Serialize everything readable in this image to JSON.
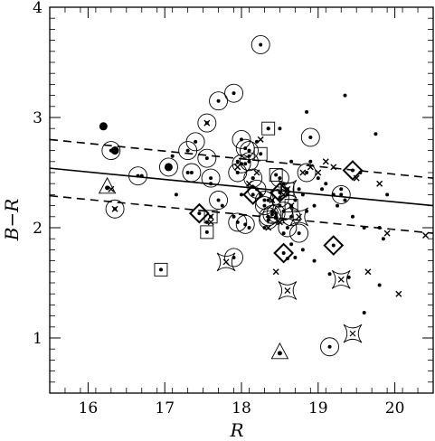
{
  "chart_data": {
    "type": "scatter",
    "xlabel": "R",
    "ylabel": "B−R",
    "xlim": [
      15.5,
      20.5
    ],
    "ylim": [
      0.5,
      4.0
    ],
    "x_ticks": [
      16,
      17,
      18,
      19,
      20
    ],
    "y_ticks": [
      1,
      2,
      3,
      4
    ],
    "x_tick_labels": [
      "16",
      "17",
      "18",
      "19",
      "20"
    ],
    "y_tick_labels": [
      "1",
      "2",
      "3",
      "4"
    ],
    "grid": false,
    "lines": [
      {
        "style": "solid",
        "x": [
          15.5,
          20.5
        ],
        "y": [
          2.54,
          2.2
        ]
      },
      {
        "style": "dashed",
        "x": [
          15.5,
          20.5
        ],
        "y": [
          2.8,
          2.45
        ]
      },
      {
        "style": "dashed",
        "x": [
          15.5,
          20.5
        ],
        "y": [
          2.29,
          1.95
        ]
      }
    ],
    "series": [
      {
        "marker": "small-dot",
        "points": [
          [
            17.95,
            2.6
          ],
          [
            18.1,
            2.65
          ],
          [
            18.05,
            2.58
          ],
          [
            18.0,
            2.3
          ],
          [
            18.15,
            2.45
          ],
          [
            18.25,
            2.3
          ],
          [
            18.35,
            2.25
          ],
          [
            18.4,
            2.15
          ],
          [
            18.45,
            2.1
          ],
          [
            18.5,
            2.2
          ],
          [
            18.55,
            2.4
          ],
          [
            18.6,
            2.3
          ],
          [
            18.7,
            2.25
          ],
          [
            18.8,
            2.3
          ],
          [
            18.85,
            2.15
          ],
          [
            18.95,
            2.2
          ],
          [
            19.0,
            2.45
          ],
          [
            19.05,
            2.35
          ],
          [
            19.1,
            2.4
          ],
          [
            19.2,
            2.3
          ],
          [
            19.25,
            2.2
          ],
          [
            19.3,
            2.35
          ],
          [
            19.35,
            2.25
          ],
          [
            19.45,
            2.1
          ],
          [
            19.55,
            2.5
          ],
          [
            19.6,
            2.0
          ],
          [
            19.8,
            2.0
          ],
          [
            19.85,
            1.9
          ],
          [
            19.9,
            2.3
          ],
          [
            19.75,
            2.85
          ],
          [
            19.35,
            3.2
          ],
          [
            18.85,
            3.05
          ],
          [
            18.35,
            2.9
          ],
          [
            18.5,
            2.9
          ],
          [
            17.1,
            2.65
          ],
          [
            17.3,
            2.5
          ],
          [
            17.15,
            2.3
          ],
          [
            17.6,
            2.4
          ],
          [
            17.75,
            2.2
          ],
          [
            17.9,
            2.1
          ],
          [
            18.1,
            2.0
          ],
          [
            18.3,
            2.0
          ],
          [
            18.55,
            1.95
          ],
          [
            18.65,
            1.85
          ],
          [
            18.8,
            1.8
          ],
          [
            18.95,
            1.7
          ],
          [
            19.15,
            1.58
          ],
          [
            19.4,
            1.55
          ],
          [
            19.6,
            1.23
          ],
          [
            19.8,
            1.48
          ],
          [
            18.6,
            1.72
          ],
          [
            18.7,
            1.73
          ],
          [
            18.75,
            2.35
          ],
          [
            18.65,
            2.6
          ],
          [
            18.2,
            2.78
          ],
          [
            16.35,
            2.72
          ],
          [
            16.7,
            2.47
          ],
          [
            17.55,
            2.05
          ],
          [
            18.9,
            2.6
          ]
        ]
      },
      {
        "marker": "cross",
        "points": [
          [
            17.55,
            2.95
          ],
          [
            18.25,
            2.8
          ],
          [
            18.8,
            2.5
          ],
          [
            18.9,
            2.55
          ],
          [
            19.0,
            2.5
          ],
          [
            19.1,
            2.6
          ],
          [
            19.2,
            2.55
          ],
          [
            19.5,
            2.45
          ],
          [
            19.8,
            2.4
          ],
          [
            18.4,
            2.25
          ],
          [
            18.55,
            2.3
          ],
          [
            18.65,
            2.2
          ],
          [
            18.45,
            1.6
          ],
          [
            18.35,
            2.0
          ],
          [
            17.6,
            2.1
          ],
          [
            16.35,
            2.17
          ],
          [
            16.3,
            2.35
          ],
          [
            17.6,
            2.05
          ],
          [
            19.65,
            1.6
          ],
          [
            20.05,
            1.4
          ],
          [
            20.4,
            1.93
          ],
          [
            19.9,
            1.95
          ],
          [
            18.5,
            2.05
          ],
          [
            18.2,
            2.5
          ],
          [
            18.1,
            2.4
          ],
          [
            17.95,
            2.55
          ]
        ]
      },
      {
        "marker": "large-dot",
        "points": [
          [
            16.2,
            2.92
          ],
          [
            16.35,
            2.7
          ],
          [
            17.05,
            2.55
          ]
        ]
      },
      {
        "marker": "circled-dot",
        "points": [
          [
            16.3,
            2.7
          ],
          [
            16.65,
            2.47
          ],
          [
            17.05,
            2.55
          ],
          [
            17.3,
            2.7
          ],
          [
            17.35,
            2.5
          ],
          [
            17.4,
            2.78
          ],
          [
            17.55,
            2.63
          ],
          [
            17.7,
            3.15
          ],
          [
            17.6,
            2.45
          ],
          [
            17.7,
            2.25
          ],
          [
            17.9,
            3.22
          ],
          [
            17.95,
            2.5
          ],
          [
            18.0,
            2.8
          ],
          [
            18.05,
            2.72
          ],
          [
            18.1,
            2.6
          ],
          [
            18.15,
            2.45
          ],
          [
            18.2,
            2.35
          ],
          [
            18.25,
            3.66
          ],
          [
            18.3,
            2.2
          ],
          [
            18.35,
            2.1
          ],
          [
            18.4,
            2.12
          ],
          [
            18.45,
            2.13
          ],
          [
            18.5,
            2.45
          ],
          [
            18.6,
            2.0
          ],
          [
            18.65,
            2.1
          ],
          [
            18.75,
            1.95
          ],
          [
            18.85,
            2.5
          ],
          [
            18.9,
            2.82
          ],
          [
            17.9,
            1.73
          ],
          [
            17.95,
            2.05
          ],
          [
            18.05,
            2.03
          ],
          [
            18.1,
            2.7
          ],
          [
            18.5,
            2.27
          ],
          [
            18.55,
            2.15
          ],
          [
            18.35,
            2.07
          ],
          [
            18.3,
            2.25
          ],
          [
            19.15,
            0.92
          ],
          [
            19.3,
            2.3
          ],
          [
            16.35,
            2.17
          ],
          [
            17.55,
            2.95
          ],
          [
            18.0,
            2.58
          ]
        ]
      },
      {
        "marker": "square",
        "points": [
          [
            16.95,
            1.62
          ],
          [
            17.55,
            1.96
          ],
          [
            18.45,
            2.48
          ],
          [
            18.35,
            2.9
          ],
          [
            18.6,
            2.35
          ],
          [
            18.25,
            2.67
          ],
          [
            18.65,
            2.2
          ],
          [
            17.6,
            2.1
          ]
        ]
      },
      {
        "marker": "diamond",
        "points": [
          [
            17.45,
            2.13
          ],
          [
            18.15,
            2.3
          ],
          [
            18.5,
            2.32
          ],
          [
            18.55,
            1.77
          ],
          [
            19.2,
            1.84
          ],
          [
            19.45,
            2.52
          ]
        ]
      },
      {
        "marker": "triangle",
        "points": [
          [
            16.25,
            2.37
          ],
          [
            18.5,
            0.87
          ],
          [
            18.45,
            2.1
          ]
        ]
      },
      {
        "marker": "star",
        "points": [
          [
            17.8,
            1.69
          ],
          [
            18.6,
            1.43
          ],
          [
            19.3,
            1.53
          ],
          [
            19.45,
            1.04
          ],
          [
            18.75,
            2.1
          ],
          [
            18.6,
            2.35
          ]
        ]
      }
    ]
  }
}
